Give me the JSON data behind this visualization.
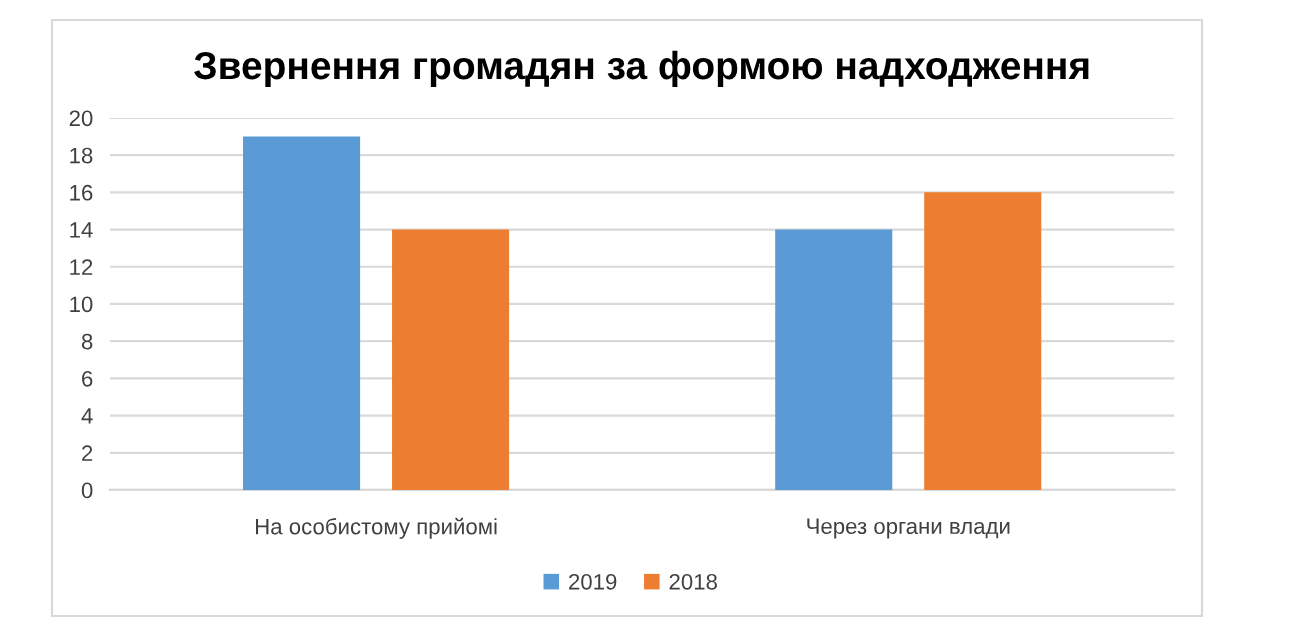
{
  "chart_data": {
    "type": "bar",
    "title": "Звернення громадян за формою надходження",
    "categories": [
      "На особистому прийомі",
      "Через органи влади"
    ],
    "series": [
      {
        "name": "2019",
        "color": "#5b9bd5",
        "values": [
          19,
          14
        ]
      },
      {
        "name": "2018",
        "color": "#ed7d31",
        "values": [
          14,
          16
        ]
      }
    ],
    "ylim": [
      0,
      20
    ],
    "yticks": [
      0,
      2,
      4,
      6,
      8,
      10,
      12,
      14,
      16,
      18,
      20
    ],
    "grid": "y",
    "legend": "bottom"
  }
}
